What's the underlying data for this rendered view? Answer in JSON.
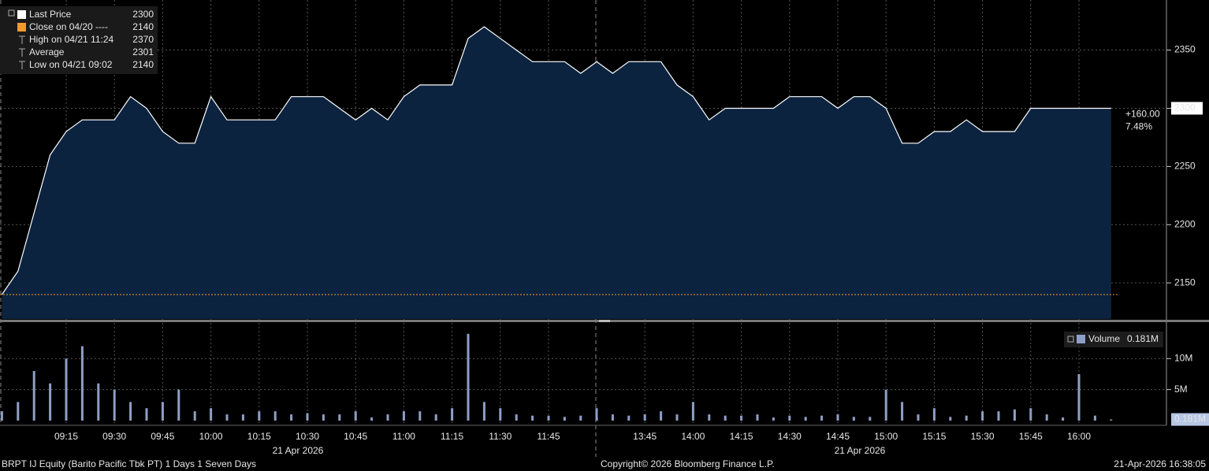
{
  "chart_data": {
    "type": "line",
    "x": [
      "08:55",
      "09:00",
      "09:05",
      "09:10",
      "09:15",
      "09:20",
      "09:25",
      "09:30",
      "09:35",
      "09:40",
      "09:45",
      "09:50",
      "09:55",
      "10:00",
      "10:05",
      "10:10",
      "10:15",
      "10:20",
      "10:25",
      "10:30",
      "10:35",
      "10:40",
      "10:45",
      "10:50",
      "10:55",
      "11:00",
      "11:05",
      "11:10",
      "11:15",
      "11:20",
      "11:25",
      "11:30",
      "11:35",
      "11:40",
      "11:45",
      "11:50",
      "11:55",
      "12:00",
      "13:30",
      "13:35",
      "13:40",
      "13:45",
      "13:50",
      "13:55",
      "14:00",
      "14:05",
      "14:10",
      "14:15",
      "14:20",
      "14:25",
      "14:30",
      "14:35",
      "14:40",
      "14:45",
      "14:50",
      "14:55",
      "15:00",
      "15:05",
      "15:10",
      "15:15",
      "15:20",
      "15:25",
      "15:30",
      "15:35",
      "15:40",
      "15:45",
      "15:50",
      "15:55",
      "16:00",
      "16:05",
      "16:10"
    ],
    "series": [
      {
        "name": "Last Price",
        "color": "#ffffff",
        "fill": "#0c2340",
        "values": [
          2140,
          2160,
          2210,
          2260,
          2280,
          2290,
          2290,
          2290,
          2310,
          2300,
          2280,
          2270,
          2270,
          2310,
          2290,
          2290,
          2290,
          2290,
          2310,
          2310,
          2310,
          2300,
          2290,
          2300,
          2290,
          2310,
          2320,
          2320,
          2320,
          2360,
          2370,
          2360,
          2350,
          2340,
          2340,
          2340,
          2330,
          2340,
          2340,
          2330,
          2340,
          2340,
          2340,
          2320,
          2310,
          2290,
          2300,
          2300,
          2300,
          2300,
          2310,
          2310,
          2310,
          2300,
          2310,
          2310,
          2300,
          2270,
          2270,
          2280,
          2280,
          2290,
          2280,
          2280,
          2280,
          2300,
          2300,
          2300,
          2300,
          2300,
          2300
        ]
      }
    ],
    "ylim": [
      2119,
      2393
    ],
    "yticks": [
      2150,
      2200,
      2250,
      2300,
      2350
    ],
    "grid": true,
    "xticks": [
      "09:15",
      "09:30",
      "09:45",
      "10:00",
      "10:15",
      "10:30",
      "10:45",
      "11:00",
      "11:15",
      "11:30",
      "11:45",
      "13:45",
      "14:00",
      "14:15",
      "14:30",
      "14:45",
      "15:00",
      "15:15",
      "15:30",
      "15:45",
      "16:00"
    ],
    "date_labels": [
      "21 Apr 2026",
      "21 Apr 2026"
    ],
    "legend": [
      {
        "label": "Last Price",
        "value": 2300
      },
      {
        "label": "Close on 04/20 ----",
        "value": 2140
      },
      {
        "label": "High on 04/21 11:24",
        "value": 2370
      },
      {
        "label": "Average",
        "value": 2301
      },
      {
        "label": "Low on 04/21 09:02",
        "value": 2140
      }
    ],
    "change_label": "+160.00",
    "change_pct_label": "7.48%",
    "volume": {
      "type": "bar",
      "name": "Volume",
      "color": "#8e9fc7",
      "values": [
        1.5,
        3,
        8,
        6,
        10,
        12,
        6,
        5,
        3,
        2,
        3,
        5,
        1.5,
        2,
        1,
        1,
        1.5,
        1.5,
        1,
        1.2,
        1,
        1,
        1.5,
        0.5,
        1,
        1.5,
        1.5,
        1,
        2,
        14,
        3,
        2,
        1,
        0.8,
        0.8,
        0.6,
        0.8,
        0.5,
        2,
        1,
        0.8,
        1,
        1.5,
        1,
        3,
        1,
        0.8,
        0.8,
        1,
        0.5,
        0.8,
        0.6,
        0.8,
        1,
        0.6,
        0.6,
        5,
        3,
        1,
        2,
        0.6,
        0.8,
        1.5,
        1.5,
        1.8,
        2,
        1,
        0.5,
        7.5,
        0.8,
        0.181
      ],
      "ylim": [
        0,
        15.5
      ],
      "yticks": [
        {
          "value": 5,
          "label": "5M"
        },
        {
          "value": 10,
          "label": "10M"
        }
      ],
      "last_label": "0.181M"
    },
    "footer": {
      "left": "BRPT IJ Equity (Barito Pacific Tbk PT) 1 Days 1 Seven Days",
      "center": "Copyright© 2026 Bloomberg Finance L.P.",
      "right": "21-Apr-2026 16:38:05"
    }
  }
}
